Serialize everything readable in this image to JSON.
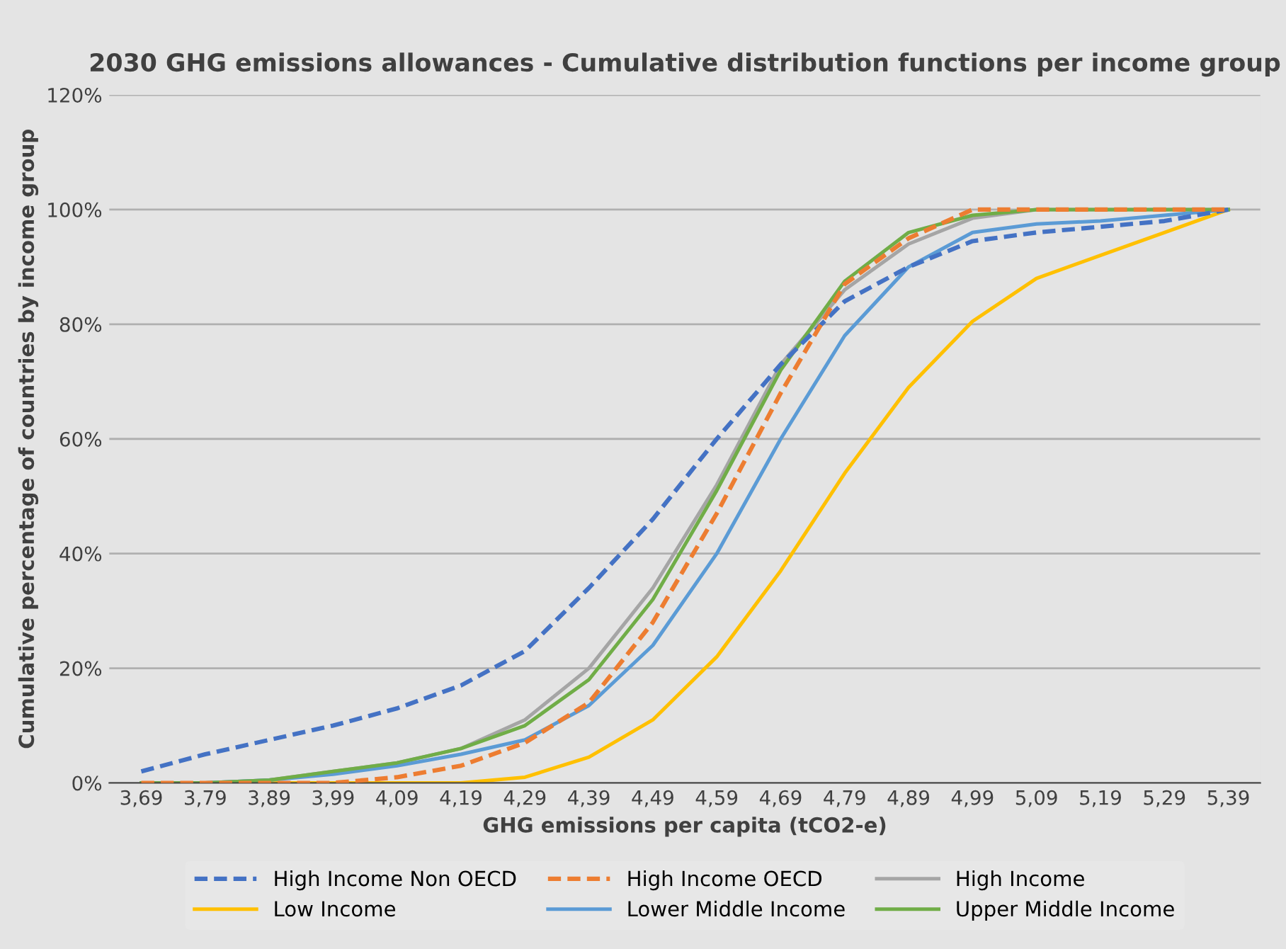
{
  "chart_data": {
    "type": "line",
    "title": "2030 GHG emissions allowances - Cumulative distribution functions per income group",
    "xlabel": "GHG emissions per capita (tCO2-e)",
    "ylabel": "Cumulative percentage of countries by income group",
    "categories": [
      "3,69",
      "3,79",
      "3,89",
      "3,99",
      "4,09",
      "4,19",
      "4,29",
      "4,39",
      "4,49",
      "4,59",
      "4,69",
      "4,79",
      "4,89",
      "4,99",
      "5,09",
      "5,19",
      "5,29",
      "5,39"
    ],
    "ylim": [
      0,
      120
    ],
    "yticks": [
      {
        "value": 0,
        "label": "0%"
      },
      {
        "value": 20,
        "label": "20%"
      },
      {
        "value": 40,
        "label": "40%"
      },
      {
        "value": 60,
        "label": "60%"
      },
      {
        "value": 80,
        "label": "80%"
      },
      {
        "value": 100,
        "label": "100%"
      },
      {
        "value": 120,
        "label": "120%"
      }
    ],
    "grid": "y",
    "legend": "bottom",
    "marker": "none",
    "series": [
      {
        "name": "High Income Non OECD",
        "color": "#4472c4",
        "line_style": "dashed",
        "values": [
          2,
          5,
          7.5,
          10,
          13,
          17,
          23,
          34,
          46,
          60,
          73,
          84,
          90,
          94.5,
          96,
          97,
          98,
          100
        ]
      },
      {
        "name": "High Income OECD",
        "color": "#ed7d31",
        "line_style": "dashed",
        "values": [
          0,
          0,
          0,
          0,
          1,
          3,
          7,
          14,
          28,
          47,
          68,
          87,
          95,
          100,
          100,
          100,
          100,
          100
        ]
      },
      {
        "name": "High Income",
        "color": "#a5a5a5",
        "line_style": "solid",
        "values": [
          0,
          0,
          0.5,
          2,
          3.5,
          6,
          11,
          20,
          34,
          52,
          73,
          86,
          94,
          98.5,
          100,
          100,
          100,
          100
        ]
      },
      {
        "name": "Low Income",
        "color": "#ffc000",
        "line_style": "solid",
        "values": [
          0,
          0,
          0,
          0,
          0,
          0,
          1,
          4.5,
          11,
          22,
          37,
          54,
          69,
          80.5,
          88,
          92,
          96,
          100
        ]
      },
      {
        "name": "Lower Middle Income",
        "color": "#5b9bd5",
        "line_style": "solid",
        "values": [
          0,
          0,
          0.5,
          1.5,
          3,
          5,
          7.5,
          13.5,
          24,
          40,
          60,
          78,
          90,
          96,
          97.5,
          98,
          99,
          100
        ]
      },
      {
        "name": "Upper Middle Income",
        "color": "#70ad47",
        "line_style": "solid",
        "values": [
          0,
          0,
          0.5,
          2,
          3.5,
          6,
          10,
          18,
          32,
          51,
          72,
          87.5,
          96,
          99,
          100,
          100,
          100,
          100
        ]
      }
    ]
  }
}
